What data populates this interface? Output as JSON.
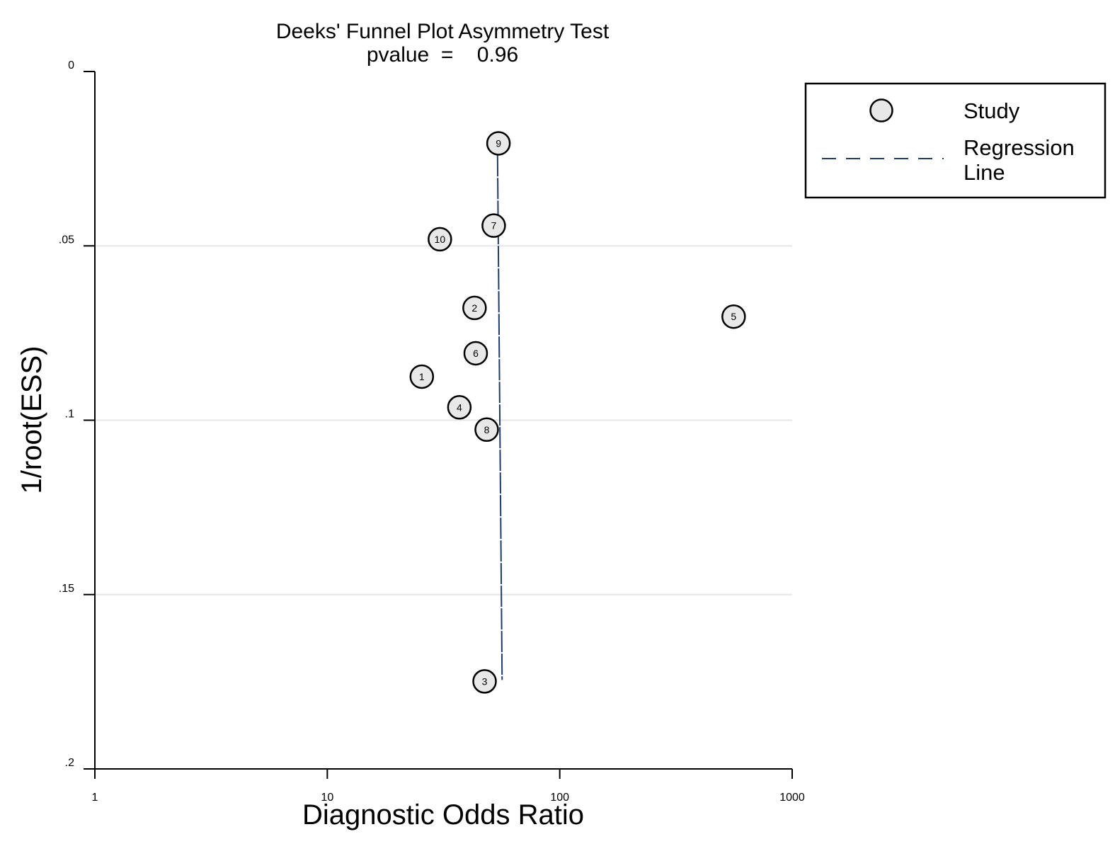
{
  "chart_data": {
    "type": "scatter",
    "title": "Deeks' Funnel Plot Asymmetry Test",
    "subtitle": "pvalue  =    0.96",
    "xlabel": "Diagnostic Odds Ratio",
    "ylabel": "1/root(ESS)",
    "x_scale": "log",
    "xlim": [
      1,
      1000
    ],
    "ylim": [
      0,
      0.2
    ],
    "y_reversed": true,
    "grid": true,
    "x_ticks": [
      1,
      10,
      100,
      1000
    ],
    "x_tick_labels": [
      "1",
      "10",
      "100",
      "1000"
    ],
    "y_ticks": [
      0,
      0.05,
      0.1,
      0.15,
      0.2
    ],
    "y_tick_labels": [
      "0",
      ".05",
      ".1",
      ".15",
      ".2"
    ],
    "series": [
      {
        "name": "Study",
        "points": [
          {
            "label": "1",
            "x": 25.5,
            "y": 0.0875
          },
          {
            "label": "2",
            "x": 43,
            "y": 0.0678
          },
          {
            "label": "3",
            "x": 47.5,
            "y": 0.1749
          },
          {
            "label": "4",
            "x": 37,
            "y": 0.0963
          },
          {
            "label": "5",
            "x": 560,
            "y": 0.0703
          },
          {
            "label": "6",
            "x": 43.5,
            "y": 0.0808
          },
          {
            "label": "7",
            "x": 52,
            "y": 0.0442
          },
          {
            "label": "8",
            "x": 48.5,
            "y": 0.1027
          },
          {
            "label": "9",
            "x": 54.5,
            "y": 0.0206
          },
          {
            "label": "10",
            "x": 30.5,
            "y": 0.0481
          }
        ]
      },
      {
        "name": "Regression Line",
        "line": [
          {
            "x": 54,
            "y": 0.024
          },
          {
            "x": 56.5,
            "y": 0.1745
          }
        ]
      }
    ],
    "legend": {
      "position": "right",
      "entries": [
        {
          "label": "Study",
          "marker": "circle"
        },
        {
          "label": "Regression Line",
          "marker": "dashed-line"
        }
      ]
    },
    "colors": {
      "marker_fill": "#e8e8e8",
      "regression_line": "#1f3b6a",
      "grid": "#e6e6e6"
    }
  }
}
